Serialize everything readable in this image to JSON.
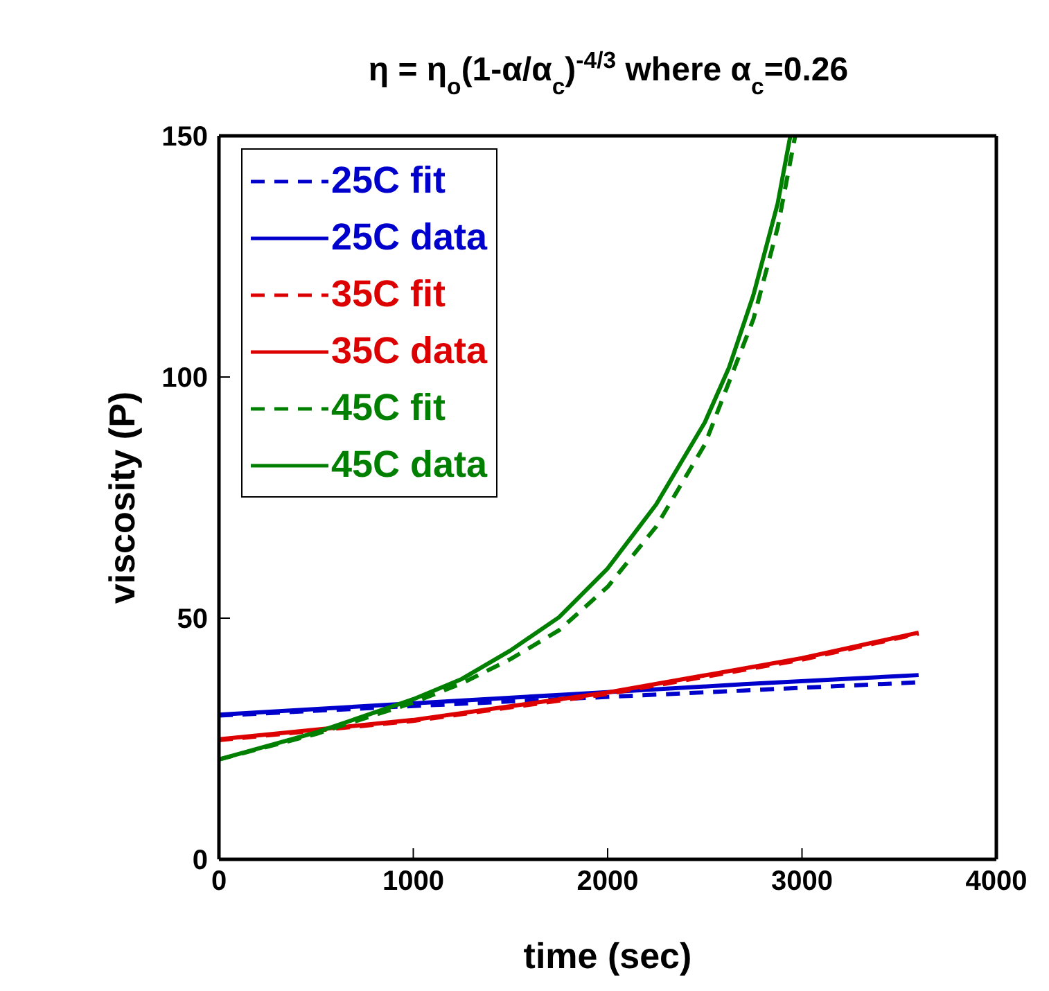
{
  "chart_data": {
    "type": "line",
    "title": "η = η$_{o}$(1-α/α$_{c}$)$^{-4/3}$ where α$_{c}$=0.26",
    "xlabel": "time (sec)",
    "ylabel": "viscosity (P)",
    "xlim": [
      0,
      4000
    ],
    "xticks": [
      0,
      1000,
      2000,
      3000,
      4000
    ],
    "ylim": [
      0,
      150
    ],
    "yticks": [
      0,
      50,
      100,
      150
    ],
    "grid": false,
    "legend": "top left",
    "marker": "none",
    "series": [
      {
        "name": "25C fit",
        "color": "#0000cc",
        "line_style": "dashed",
        "x": [
          0,
          900,
          1800,
          2700,
          3600
        ],
        "values": [
          29.8,
          31.6,
          33.3,
          35,
          36.7
        ]
      },
      {
        "name": "25C data",
        "color": "#0000cc",
        "line_style": "solid",
        "x": [
          0,
          900,
          1800,
          2700,
          3600
        ],
        "values": [
          30,
          32.1,
          34.2,
          36.3,
          38.2
        ]
      },
      {
        "name": "35C fit",
        "color": "#dd0000",
        "line_style": "dashed",
        "x": [
          0,
          1000,
          2000,
          3000,
          3600
        ],
        "values": [
          24.7,
          28.7,
          34.3,
          41.4,
          46.8
        ]
      },
      {
        "name": "35C data",
        "color": "#dd0000",
        "line_style": "solid",
        "x": [
          0,
          1000,
          2000,
          3000,
          3600
        ],
        "values": [
          24.9,
          28.9,
          34.6,
          41.7,
          47
        ]
      },
      {
        "name": "45C fit",
        "color": "#007f00",
        "line_style": "dashed",
        "x": [
          0,
          500,
          1000,
          1250,
          1500,
          1750,
          2000,
          2250,
          2500,
          2750,
          2875,
          2965
        ],
        "values": [
          20.7,
          26,
          32.5,
          36.5,
          41.5,
          47.5,
          56.5,
          69,
          86,
          112,
          131,
          150
        ]
      },
      {
        "name": "45C data",
        "color": "#007f00",
        "line_style": "solid",
        "x": [
          0,
          500,
          1000,
          1250,
          1500,
          1750,
          2000,
          2250,
          2500,
          2625,
          2750,
          2875,
          2940
        ],
        "values": [
          20.7,
          26.3,
          33.2,
          37.4,
          43.3,
          50.2,
          60.3,
          73.6,
          90.6,
          102,
          117,
          136,
          150
        ]
      }
    ]
  }
}
